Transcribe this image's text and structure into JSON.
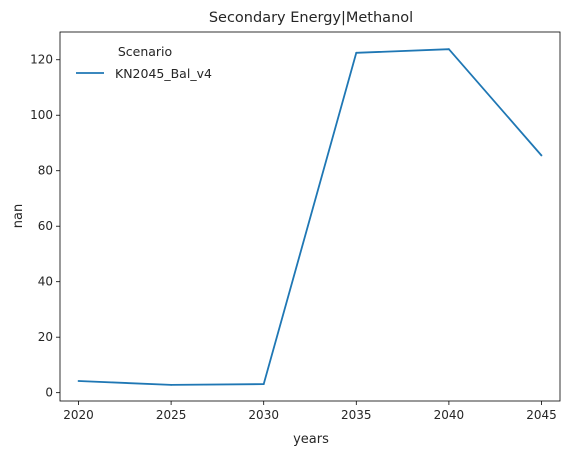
{
  "chart_data": {
    "type": "line",
    "title": "Secondary Energy|Methanol",
    "xlabel": "years",
    "ylabel": "nan",
    "x": [
      2020,
      2025,
      2030,
      2035,
      2040,
      2045
    ],
    "series": [
      {
        "name": "KN2045_Bal_v4",
        "color": "#1f77b4",
        "values": [
          4.2,
          2.8,
          3.1,
          122.5,
          123.8,
          85.5
        ]
      }
    ],
    "xticks": [
      "2020",
      "2025",
      "2030",
      "2035",
      "2040",
      "2045"
    ],
    "yticks": [
      "0",
      "20",
      "40",
      "60",
      "80",
      "100",
      "120"
    ],
    "xlim": [
      2019,
      2046
    ],
    "ylim": [
      -3,
      130
    ],
    "legend": {
      "title": "Scenario",
      "placement": "top-left"
    },
    "grid": false
  }
}
